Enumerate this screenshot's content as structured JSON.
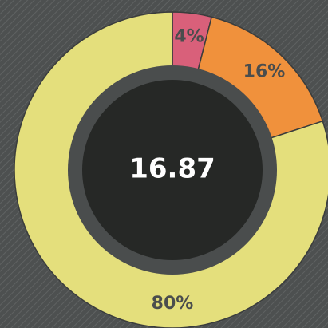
{
  "chart_data": {
    "type": "donut",
    "center_label": "16.87",
    "categories": [
      null,
      null,
      null
    ],
    "values": [
      4,
      16,
      80
    ],
    "value_labels": [
      "4%",
      "16%",
      "80%"
    ],
    "colors": [
      "#d9607a",
      "#f0913c",
      "#e4df7c"
    ]
  }
}
